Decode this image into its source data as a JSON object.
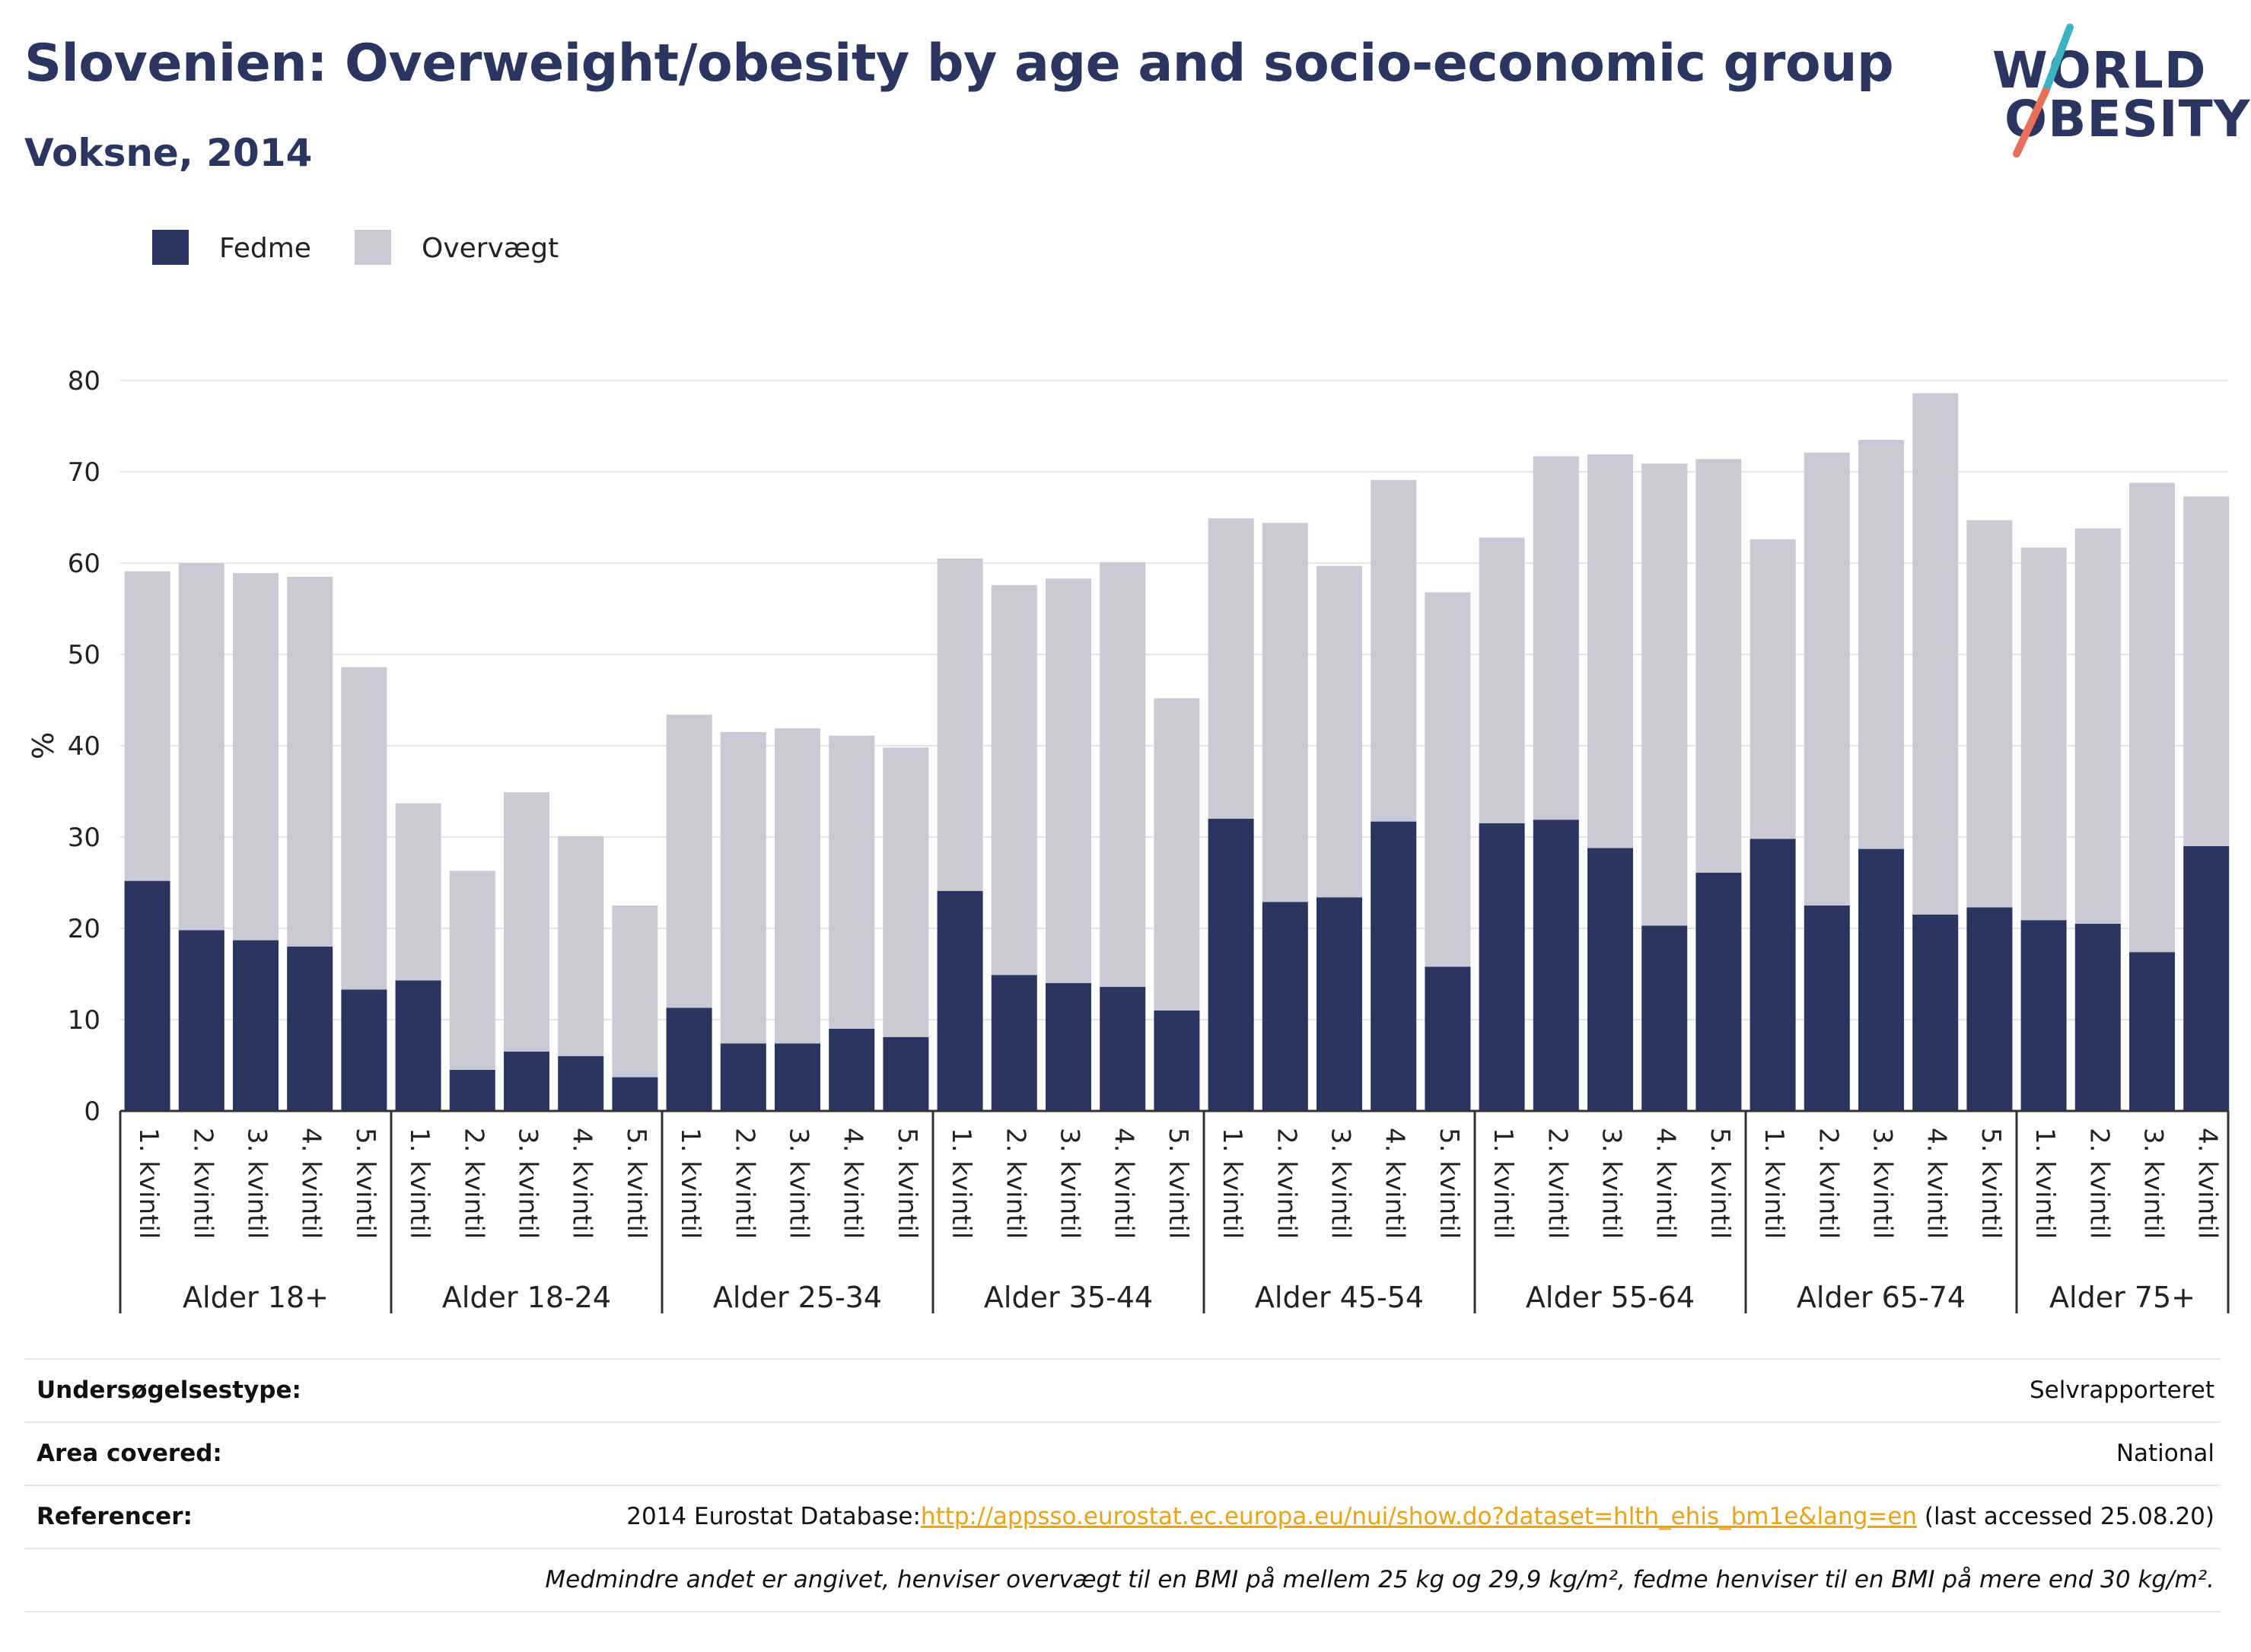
{
  "header": {
    "title": "Slovenien: Overweight/obesity by age and socio-economic group",
    "subtitle": "Voksne, 2014"
  },
  "logo": {
    "line1": "WORLD",
    "line2": "OBESITY",
    "colors": {
      "text": "#2a3560",
      "slash_top": "#3bb3c3",
      "slash_bottom": "#e8705a"
    }
  },
  "chart_data": {
    "type": "bar",
    "stacked": true,
    "ylabel": "%",
    "ylim": [
      0,
      80
    ],
    "yticks": [
      0,
      10,
      20,
      30,
      40,
      50,
      60,
      70,
      80
    ],
    "grid": true,
    "legend_position": "top-left",
    "groups": [
      {
        "label": "Alder 18+",
        "categories": [
          "1. kvintil",
          "2. kvintil",
          "3. kvintil",
          "4. kvintil",
          "5. kvintil"
        ]
      },
      {
        "label": "Alder 18-24",
        "categories": [
          "1. kvintil",
          "2. kvintil",
          "3. kvintil",
          "4. kvintil",
          "5. kvintil"
        ]
      },
      {
        "label": "Alder 25-34",
        "categories": [
          "1. kvintil",
          "2. kvintil",
          "3. kvintil",
          "4. kvintil",
          "5. kvintil"
        ]
      },
      {
        "label": "Alder 35-44",
        "categories": [
          "1. kvintil",
          "2. kvintil",
          "3. kvintil",
          "4. kvintil",
          "5. kvintil"
        ]
      },
      {
        "label": "Alder 45-54",
        "categories": [
          "1. kvintil",
          "2. kvintil",
          "3. kvintil",
          "4. kvintil",
          "5. kvintil"
        ]
      },
      {
        "label": "Alder 55-64",
        "categories": [
          "1. kvintil",
          "2. kvintil",
          "3. kvintil",
          "4. kvintil",
          "5. kvintil"
        ]
      },
      {
        "label": "Alder 65-74",
        "categories": [
          "1. kvintil",
          "2. kvintil",
          "3. kvintil",
          "4. kvintil",
          "5. kvintil"
        ]
      },
      {
        "label": "Alder 75+",
        "categories": [
          "1. kvintil",
          "2. kvintil",
          "3. kvintil",
          "4. kvintil"
        ]
      }
    ],
    "series": [
      {
        "name": "Fedme",
        "color": "#2a3560",
        "values": [
          25.2,
          19.8,
          18.7,
          18.0,
          13.3,
          14.3,
          4.5,
          6.5,
          6.0,
          3.7,
          11.3,
          7.4,
          7.4,
          9.0,
          8.1,
          24.1,
          14.9,
          14.0,
          13.6,
          11.0,
          32.0,
          22.9,
          23.4,
          31.7,
          15.8,
          31.5,
          31.9,
          28.8,
          20.3,
          26.1,
          29.8,
          22.5,
          28.7,
          21.5,
          22.3,
          20.9,
          20.5,
          17.4,
          29.0
        ]
      },
      {
        "name": "Overvægt",
        "color": "#c9cad6",
        "values": [
          33.9,
          40.2,
          40.2,
          40.5,
          35.3,
          19.4,
          21.8,
          28.4,
          24.1,
          18.8,
          32.1,
          34.1,
          34.5,
          32.1,
          31.7,
          36.4,
          42.7,
          44.3,
          46.5,
          34.2,
          32.9,
          41.5,
          36.3,
          37.4,
          41.0,
          31.3,
          39.8,
          43.1,
          50.6,
          45.3,
          32.8,
          49.6,
          44.8,
          57.1,
          42.4,
          40.8,
          43.3,
          51.4,
          38.3
        ]
      }
    ]
  },
  "info": {
    "rows": [
      {
        "label": "Undersøgelsestype:",
        "value": "Selvrapporteret"
      },
      {
        "label": "Area covered:",
        "value": "National"
      }
    ],
    "references": {
      "label": "Referencer:",
      "prefix": "2014 Eurostat Database:",
      "link": "http://appsso.eurostat.ec.europa.eu/nui/show.do?dataset=hlth_ehis_bm1e&lang=en",
      "suffix": " (last accessed 25.08.20)"
    },
    "note": "Medmindre andet er angivet, henviser overvægt til en BMI på mellem 25 kg og 29,9 kg/m², fedme henviser til en BMI på mere end 30 kg/m²."
  }
}
